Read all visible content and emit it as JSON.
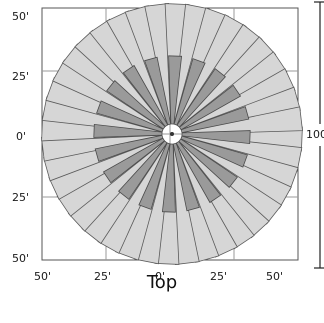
{
  "view": {
    "caption": "Top",
    "dimension_label": "100"
  },
  "y_ticks": [
    "50'",
    "25'",
    "0'",
    "25'",
    "50'"
  ],
  "x_ticks": [
    "50'",
    "25'",
    "0'",
    "25'",
    "50'"
  ],
  "colors": {
    "long_beam_fill": "#d6d6d6",
    "long_beam_stroke": "#5a5a5a",
    "short_beam_fill": "#9a9a9a",
    "short_beam_stroke": "#4a4a4a",
    "grid": "#9a9a9a",
    "frame": "#555555",
    "dimension_line": "#222222"
  },
  "pattern": {
    "beam_count": 40
  }
}
